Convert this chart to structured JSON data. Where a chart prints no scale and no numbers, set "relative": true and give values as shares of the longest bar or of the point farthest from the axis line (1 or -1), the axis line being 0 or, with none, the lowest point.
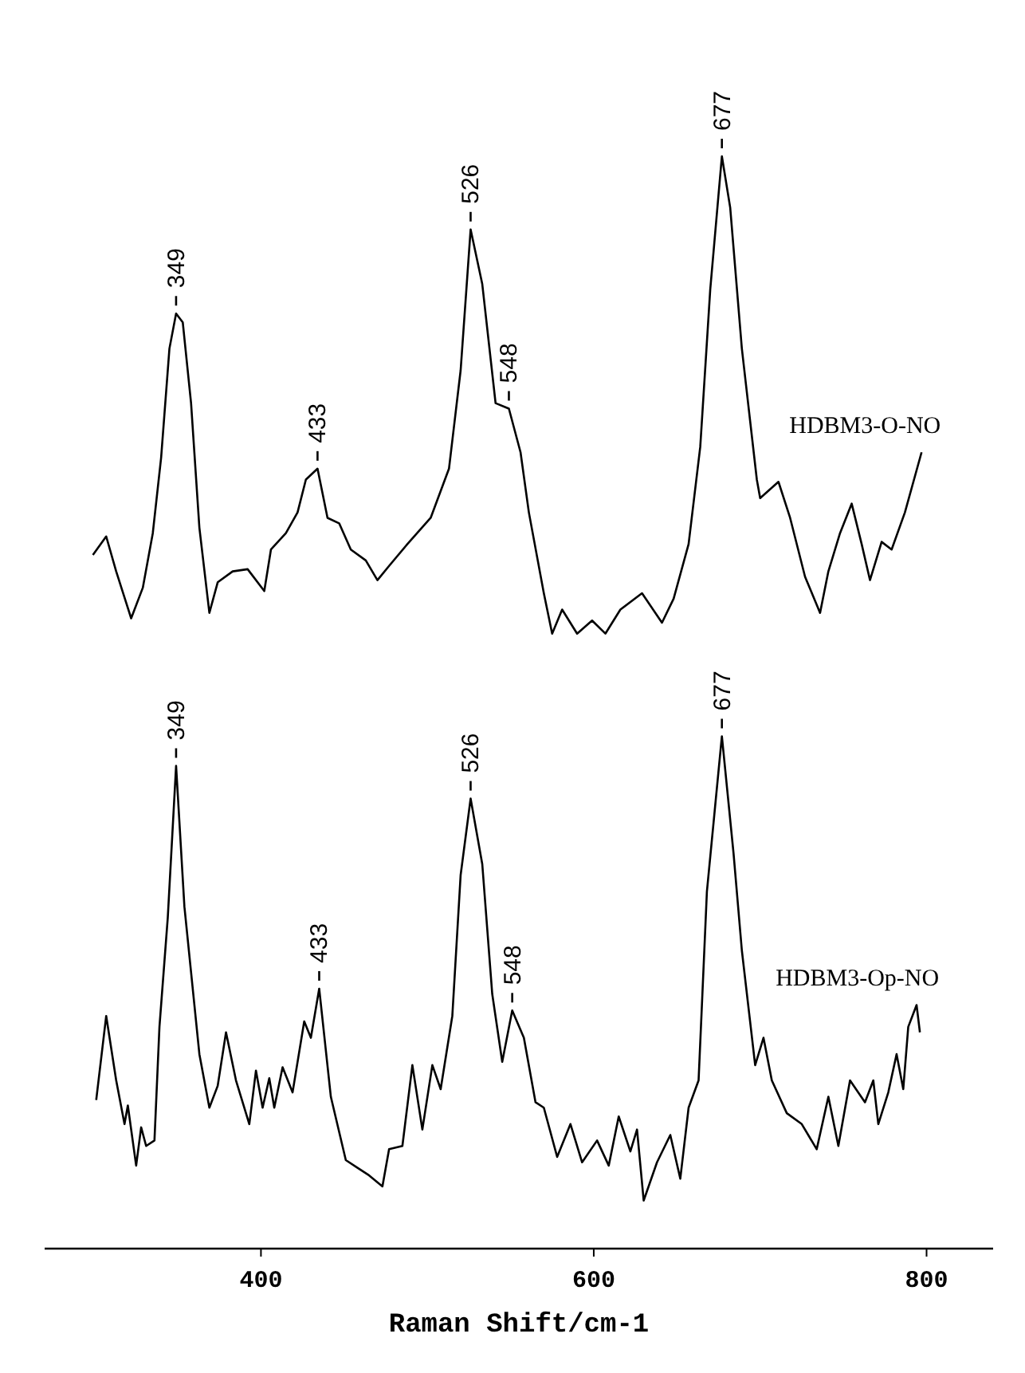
{
  "chart_data": {
    "type": "line",
    "relative": true,
    "xlabel": "Raman Shift/cm-1",
    "xlim": [
      270,
      840
    ],
    "xticks": [
      400,
      600,
      800
    ],
    "grid": false,
    "legend": false,
    "marker": "none",
    "line_style": "solid",
    "series": [
      {
        "name": "HDBM3-O-NO",
        "color": "#000000",
        "x": [
          299,
          307,
          313,
          322,
          329,
          335,
          340,
          345,
          349,
          353,
          358,
          363,
          369,
          374,
          383,
          392,
          402,
          406,
          415,
          422,
          427,
          434,
          440,
          447,
          454,
          463,
          470,
          477,
          488,
          502,
          513,
          520,
          526,
          533,
          541,
          549,
          556,
          561,
          570,
          575,
          581,
          590,
          599,
          607,
          616,
          629,
          641,
          648,
          657,
          664,
          670,
          677,
          682,
          689,
          698,
          700,
          711,
          718,
          727,
          736,
          741,
          748,
          755,
          761,
          766,
          773,
          779,
          787,
          797
        ],
        "values": [
          0.635,
          0.652,
          0.62,
          0.577,
          0.605,
          0.655,
          0.724,
          0.824,
          0.856,
          0.848,
          0.774,
          0.66,
          0.582,
          0.61,
          0.62,
          0.622,
          0.602,
          0.64,
          0.655,
          0.674,
          0.704,
          0.714,
          0.669,
          0.664,
          0.64,
          0.63,
          0.612,
          0.625,
          0.645,
          0.669,
          0.714,
          0.804,
          0.933,
          0.883,
          0.774,
          0.769,
          0.729,
          0.674,
          0.6,
          0.563,
          0.585,
          0.563,
          0.575,
          0.563,
          0.585,
          0.6,
          0.573,
          0.595,
          0.645,
          0.734,
          0.878,
          1.0,
          0.953,
          0.824,
          0.704,
          0.687,
          0.702,
          0.669,
          0.615,
          0.582,
          0.62,
          0.655,
          0.682,
          0.645,
          0.612,
          0.647,
          0.64,
          0.674,
          0.729
        ]
      },
      {
        "name": "HDBM3-Op-NO",
        "color": "#000000",
        "x": [
          301,
          307,
          313,
          318,
          320,
          325,
          328,
          331,
          336,
          339,
          344,
          349,
          354,
          358,
          363,
          369,
          374,
          379,
          385,
          393,
          397,
          401,
          405,
          408,
          413,
          419,
          426,
          430,
          435,
          442,
          451,
          458,
          465,
          473,
          477,
          485,
          491,
          497,
          503,
          508,
          515,
          520,
          526,
          533,
          539,
          545,
          551,
          558,
          565,
          570,
          578,
          586,
          593,
          602,
          609,
          615,
          622,
          626,
          630,
          638,
          646,
          652,
          657,
          663,
          668,
          677,
          684,
          689,
          697,
          702,
          707,
          716,
          725,
          734,
          741,
          747,
          754,
          763,
          768,
          771,
          777,
          782,
          786,
          789,
          794,
          796
        ],
        "values": [
          0.136,
          0.213,
          0.154,
          0.114,
          0.131,
          0.076,
          0.111,
          0.094,
          0.099,
          0.203,
          0.303,
          0.442,
          0.313,
          0.253,
          0.178,
          0.129,
          0.149,
          0.198,
          0.154,
          0.114,
          0.163,
          0.129,
          0.156,
          0.129,
          0.166,
          0.143,
          0.208,
          0.193,
          0.238,
          0.139,
          0.081,
          0.074,
          0.067,
          0.057,
          0.091,
          0.094,
          0.168,
          0.109,
          0.168,
          0.146,
          0.213,
          0.342,
          0.412,
          0.352,
          0.233,
          0.171,
          0.218,
          0.193,
          0.134,
          0.129,
          0.084,
          0.114,
          0.079,
          0.099,
          0.076,
          0.121,
          0.089,
          0.109,
          0.044,
          0.079,
          0.104,
          0.064,
          0.129,
          0.154,
          0.327,
          0.469,
          0.362,
          0.273,
          0.168,
          0.193,
          0.154,
          0.124,
          0.114,
          0.091,
          0.139,
          0.094,
          0.154,
          0.134,
          0.154,
          0.114,
          0.143,
          0.178,
          0.146,
          0.203,
          0.223,
          0.198
        ]
      }
    ],
    "annotations": [
      {
        "text": "349",
        "x": 349,
        "y": 0.856
      },
      {
        "text": "433",
        "x": 434,
        "y": 0.714
      },
      {
        "text": "526",
        "x": 526,
        "y": 0.933
      },
      {
        "text": "548",
        "x": 549,
        "y": 0.769
      },
      {
        "text": "677",
        "x": 677,
        "y": 1.0
      },
      {
        "text": "349",
        "x": 349,
        "y": 0.442
      },
      {
        "text": "433",
        "x": 435,
        "y": 0.238
      },
      {
        "text": "526",
        "x": 526,
        "y": 0.412
      },
      {
        "text": "548",
        "x": 551,
        "y": 0.218
      },
      {
        "text": "677",
        "x": 677,
        "y": 0.469
      }
    ]
  }
}
